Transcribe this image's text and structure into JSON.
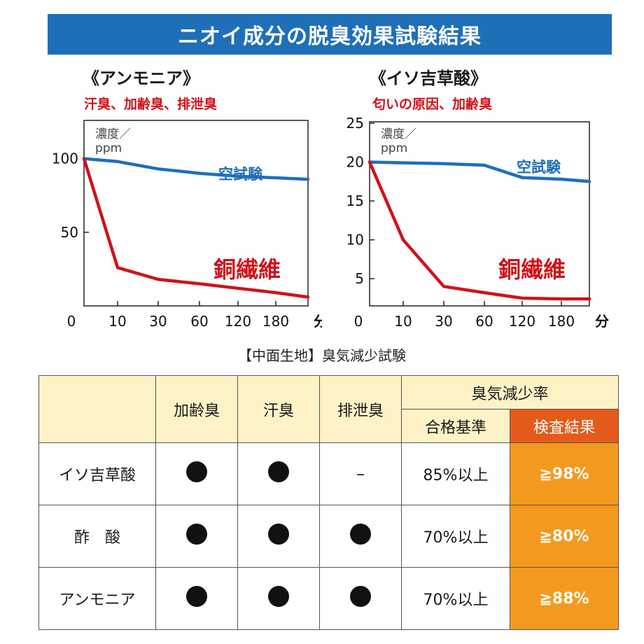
{
  "banner": {
    "title": "ニオイ成分の脱臭効果試験結果"
  },
  "colors": {
    "banner": "#1f6fb8",
    "blank_line": "#1f6fb8",
    "copper_line": "#d0121b",
    "result_bg": "#f39a1e",
    "result_head": "#e55a1a",
    "header_bg": "#fdf3c6"
  },
  "chart_data": [
    {
      "type": "line",
      "title": "《アンモニア》",
      "subtitle": "汗臭、加齢臭、排泄臭",
      "ylabel": "濃度／ppm",
      "xlabel": "分",
      "x_categories": [
        "0",
        "10",
        "30",
        "60",
        "120",
        "180"
      ],
      "y_ticks": [
        "100",
        "50"
      ],
      "ylim": [
        0,
        125
      ],
      "series": [
        {
          "name": "空試験",
          "x": [
            0,
            10,
            30,
            60,
            120,
            180,
            240
          ],
          "y": [
            100,
            98,
            93,
            90,
            88,
            87,
            86
          ]
        },
        {
          "name": "銅繊維",
          "x": [
            0,
            10,
            30,
            60,
            120,
            180,
            240
          ],
          "y": [
            100,
            26,
            18,
            15,
            12,
            9,
            6
          ]
        }
      ]
    },
    {
      "type": "line",
      "title": "《イソ吉草酸》",
      "subtitle": "匂いの原因、加齢臭",
      "ylabel": "濃度／ppm",
      "xlabel": "分",
      "x_categories": [
        "0",
        "10",
        "30",
        "60",
        "120",
        "180"
      ],
      "y_ticks": [
        "25",
        "20",
        "15",
        "10",
        "5"
      ],
      "ylim": [
        1.5,
        25
      ],
      "series": [
        {
          "name": "空試験",
          "x": [
            0,
            10,
            30,
            60,
            120,
            180,
            240
          ],
          "y": [
            20,
            19.9,
            19.8,
            19.6,
            18,
            17.8,
            17.5
          ]
        },
        {
          "name": "銅繊維",
          "x": [
            0,
            10,
            30,
            60,
            120,
            180,
            240
          ],
          "y": [
            20,
            10,
            4,
            3.2,
            2.5,
            2.4,
            2.4
          ]
        }
      ]
    }
  ],
  "test_name": "【中面生地】臭気減少試験",
  "table": {
    "col_headers": [
      "加齢臭",
      "汗臭",
      "排泄臭"
    ],
    "group_header": "臭気減少率",
    "sub_headers": [
      "合格基準",
      "検査結果"
    ],
    "rows": [
      {
        "name": "イソ吉草酸",
        "marks": [
          "dot",
          "dot",
          "dash"
        ],
        "dash_text": "–",
        "standard": "85%以上",
        "result": "≧98%"
      },
      {
        "name": "酢　酸",
        "marks": [
          "dot",
          "dot",
          "dot"
        ],
        "dash_text": "",
        "standard": "70%以上",
        "result": "≧80%"
      },
      {
        "name": "アンモニア",
        "marks": [
          "dot",
          "dot",
          "dot"
        ],
        "dash_text": "",
        "standard": "70%以上",
        "result": "≧88%"
      }
    ]
  }
}
